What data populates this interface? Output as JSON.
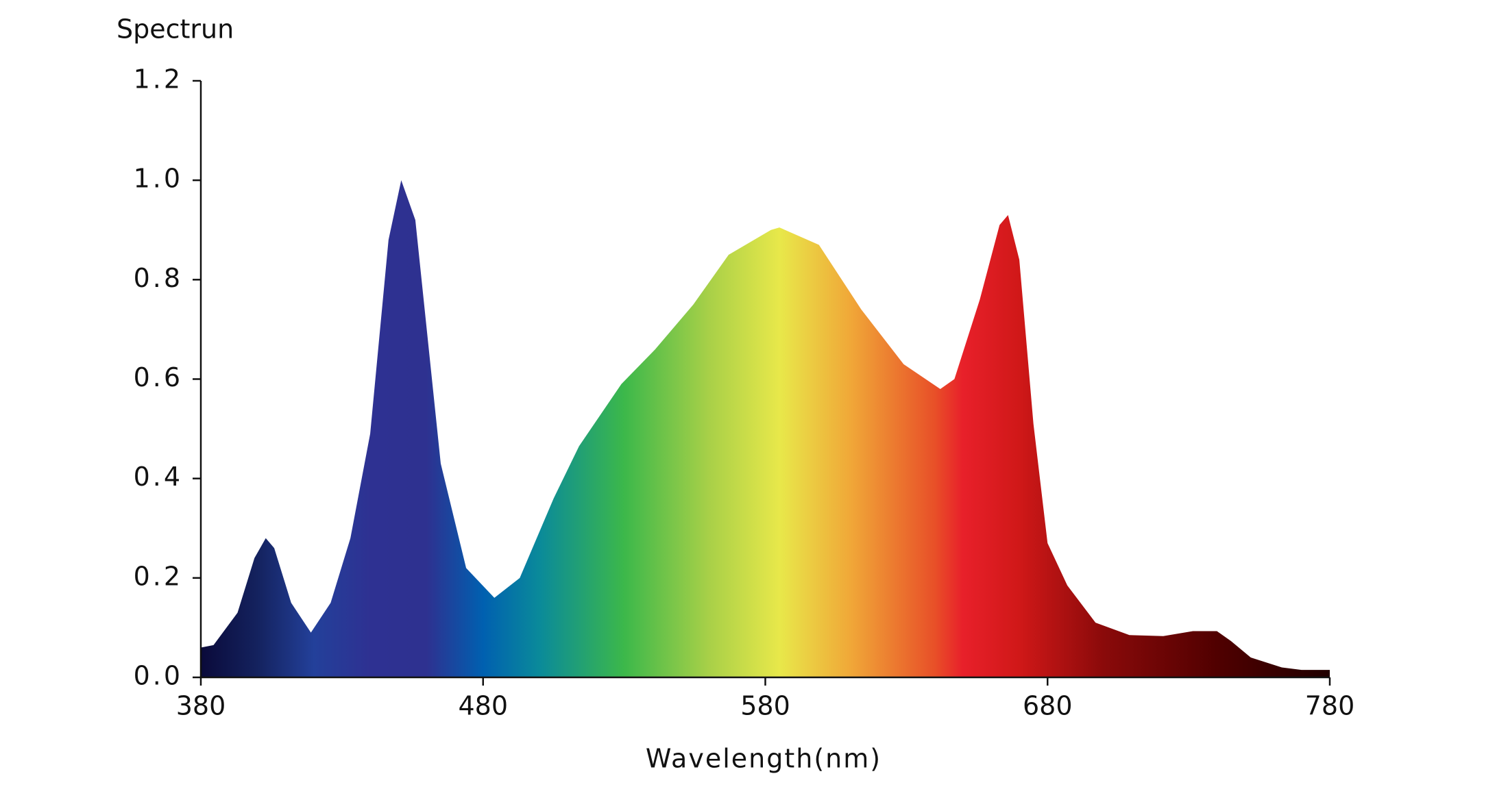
{
  "chart_data": {
    "type": "area",
    "ylabel": "Spectrun",
    "xlabel": "Wavelength(nm)",
    "x": [
      380,
      384.5,
      393,
      399,
      403,
      406,
      412,
      419,
      426,
      433,
      440,
      446.5,
      451,
      456,
      465,
      474,
      484,
      493,
      505,
      514,
      529,
      541,
      554.5,
      567,
      582,
      585,
      599,
      614,
      629,
      642,
      647,
      656,
      663,
      666,
      670,
      675,
      680,
      687,
      697,
      709,
      721,
      731.5,
      740,
      745,
      752,
      763,
      770,
      780
    ],
    "values": [
      0.06,
      0.065,
      0.13,
      0.24,
      0.28,
      0.26,
      0.15,
      0.09,
      0.15,
      0.28,
      0.49,
      0.88,
      1.0,
      0.92,
      0.43,
      0.22,
      0.16,
      0.2,
      0.36,
      0.465,
      0.59,
      0.66,
      0.75,
      0.85,
      0.9,
      0.905,
      0.87,
      0.74,
      0.63,
      0.58,
      0.6,
      0.76,
      0.91,
      0.93,
      0.84,
      0.51,
      0.27,
      0.185,
      0.11,
      0.085,
      0.083,
      0.093,
      0.093,
      0.073,
      0.04,
      0.02,
      0.015,
      0.015
    ],
    "xlim": [
      380,
      780
    ],
    "xticks": [
      380,
      480,
      580,
      680,
      780
    ],
    "ylim": [
      0,
      1.2
    ],
    "yticks": [
      {
        "value": 0,
        "label": "0.0"
      },
      0.2,
      0.4,
      0.6,
      0.8,
      {
        "value": 1,
        "label": "1.0"
      },
      1.2
    ]
  }
}
